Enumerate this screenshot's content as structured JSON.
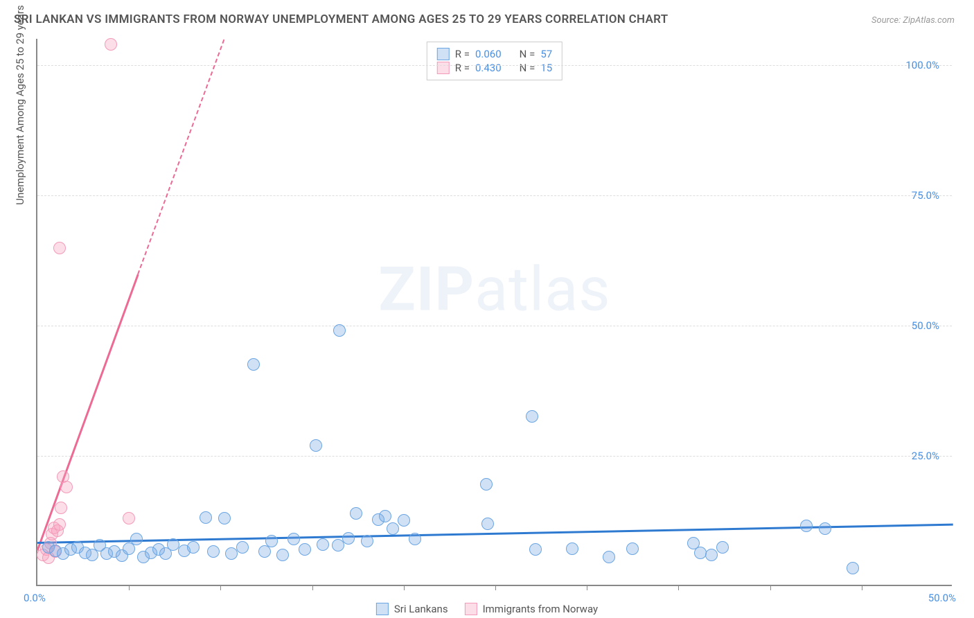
{
  "chart": {
    "type": "scatter",
    "title": "SRI LANKAN VS IMMIGRANTS FROM NORWAY UNEMPLOYMENT AMONG AGES 25 TO 29 YEARS CORRELATION CHART",
    "source": "Source: ZipAtlas.com",
    "watermark_bold": "ZIP",
    "watermark_rest": "atlas",
    "y_axis_label": "Unemployment Among Ages 25 to 29 years",
    "xlim": [
      0,
      50
    ],
    "ylim": [
      0,
      105
    ],
    "x_ticks": [
      0,
      50
    ],
    "x_tick_labels": [
      "0.0%",
      "50.0%"
    ],
    "x_minor_ticks": [
      5,
      10,
      15,
      20,
      25,
      30,
      35,
      40,
      45
    ],
    "y_ticks": [
      25,
      50,
      75,
      100
    ],
    "y_tick_labels": [
      "25.0%",
      "50.0%",
      "75.0%",
      "100.0%"
    ],
    "background_color": "#ffffff",
    "grid_color": "#dddddd",
    "axis_color": "#888888",
    "tick_label_color": "#4a8fe0",
    "marker_radius": 9,
    "marker_stroke_width": 1.5,
    "series": [
      {
        "name": "Sri Lankans",
        "color_fill": "rgba(120,170,230,0.35)",
        "color_stroke": "#6aa5e2",
        "trend_color": "#2e7ad1",
        "trend_dashed": false,
        "stats": {
          "R": "0.060",
          "N": "57"
        },
        "trend": {
          "x1": 0,
          "y1": 8.5,
          "x2": 50,
          "y2": 12.0
        },
        "points": [
          [
            0.6,
            7.5
          ],
          [
            1.0,
            6.8
          ],
          [
            1.4,
            6.2
          ],
          [
            1.8,
            7.0
          ],
          [
            2.2,
            7.5
          ],
          [
            2.6,
            6.4
          ],
          [
            3.0,
            6.0
          ],
          [
            3.4,
            7.8
          ],
          [
            3.8,
            6.2
          ],
          [
            4.2,
            6.6
          ],
          [
            4.6,
            5.8
          ],
          [
            5.0,
            7.2
          ],
          [
            5.4,
            9.0
          ],
          [
            5.8,
            5.6
          ],
          [
            6.2,
            6.4
          ],
          [
            6.6,
            7.0
          ],
          [
            7.0,
            6.2
          ],
          [
            7.4,
            8.0
          ],
          [
            8.0,
            6.8
          ],
          [
            8.5,
            7.4
          ],
          [
            9.2,
            13.2
          ],
          [
            9.6,
            6.6
          ],
          [
            10.2,
            13.0
          ],
          [
            10.6,
            6.2
          ],
          [
            11.2,
            7.4
          ],
          [
            11.8,
            42.5
          ],
          [
            12.4,
            6.6
          ],
          [
            12.8,
            8.6
          ],
          [
            13.4,
            6.0
          ],
          [
            14.0,
            9.0
          ],
          [
            14.6,
            7.0
          ],
          [
            15.2,
            27.0
          ],
          [
            15.6,
            8.0
          ],
          [
            16.4,
            7.8
          ],
          [
            16.5,
            49.0
          ],
          [
            17.0,
            9.2
          ],
          [
            17.4,
            14.0
          ],
          [
            18.0,
            8.6
          ],
          [
            18.6,
            12.8
          ],
          [
            19.0,
            13.4
          ],
          [
            19.4,
            11.0
          ],
          [
            20.0,
            12.6
          ],
          [
            20.6,
            9.0
          ],
          [
            24.5,
            19.5
          ],
          [
            24.6,
            12.0
          ],
          [
            27.0,
            32.5
          ],
          [
            27.2,
            7.0
          ],
          [
            29.2,
            7.2
          ],
          [
            31.2,
            5.6
          ],
          [
            32.5,
            7.2
          ],
          [
            35.8,
            8.2
          ],
          [
            36.2,
            6.4
          ],
          [
            36.8,
            6.0
          ],
          [
            37.4,
            7.4
          ],
          [
            42.0,
            11.5
          ],
          [
            43.0,
            11.0
          ],
          [
            44.5,
            3.4
          ]
        ]
      },
      {
        "name": "Immigrants from Norway",
        "color_fill": "rgba(245,160,190,0.35)",
        "color_stroke": "#f39ab8",
        "trend_color": "#ec6a94",
        "trend_dashed": true,
        "stats": {
          "R": "0.430",
          "N": "15"
        },
        "trend_solid": {
          "x1": 0,
          "y1": 7,
          "x2": 5.5,
          "y2": 60
        },
        "trend_dash": {
          "x1": 5.5,
          "y1": 60,
          "x2": 10.2,
          "y2": 105
        },
        "points": [
          [
            0.3,
            6.0
          ],
          [
            0.5,
            7.0
          ],
          [
            0.6,
            5.4
          ],
          [
            0.7,
            8.2
          ],
          [
            0.8,
            10.0
          ],
          [
            0.9,
            11.2
          ],
          [
            1.0,
            6.6
          ],
          [
            1.1,
            10.6
          ],
          [
            1.2,
            11.8
          ],
          [
            1.3,
            15.0
          ],
          [
            1.4,
            21.0
          ],
          [
            1.6,
            19.0
          ],
          [
            1.2,
            64.8
          ],
          [
            4.0,
            104.0
          ],
          [
            5.0,
            13.0
          ]
        ]
      }
    ],
    "legend_labels": {
      "r_label": "R =",
      "n_label": "N ="
    }
  }
}
